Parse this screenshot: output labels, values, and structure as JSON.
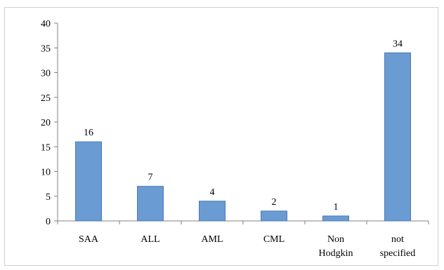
{
  "chart_data": {
    "type": "bar",
    "categories": [
      [
        "SAA"
      ],
      [
        "ALL"
      ],
      [
        "AML"
      ],
      [
        "CML"
      ],
      [
        "Non",
        "Hodgkin"
      ],
      [
        "not",
        "specified"
      ]
    ],
    "values": [
      16,
      7,
      4,
      2,
      1,
      34
    ],
    "data_labels": [
      "16",
      "7",
      "4",
      "2",
      "1",
      "34"
    ],
    "y_ticks": [
      "0",
      "5",
      "10",
      "15",
      "20",
      "25",
      "30",
      "35",
      "40"
    ],
    "ylim": [
      0,
      40
    ],
    "grid": false,
    "legend": "none",
    "colors": {
      "bar_fill": "#6a9bd2",
      "bar_stroke": "#4a7bb8",
      "axis": "#808080"
    }
  }
}
